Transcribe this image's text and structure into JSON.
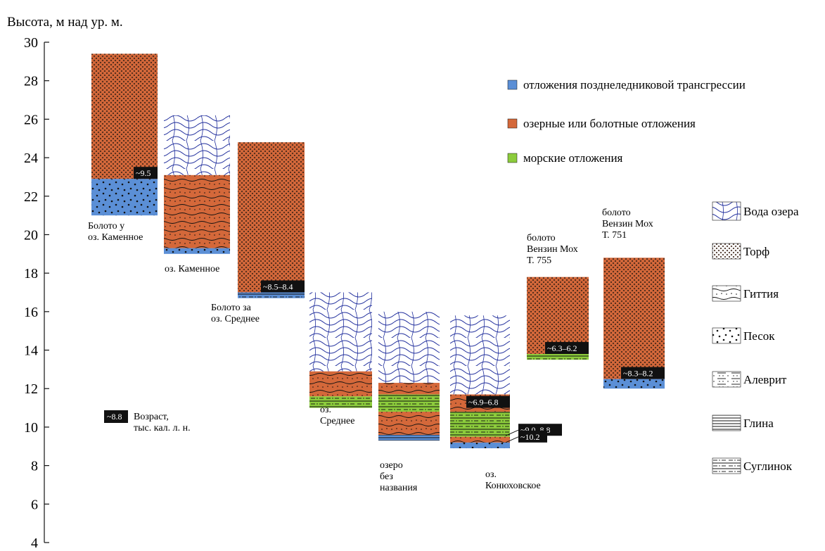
{
  "axis": {
    "ylabel": "Высота, м над ур. м.",
    "ymin": 4,
    "ymax": 30,
    "ticks": [
      "30",
      "28",
      "26",
      "24",
      "22",
      "20",
      "18",
      "16",
      "14",
      "12",
      "10",
      "8",
      "6",
      "4"
    ]
  },
  "colors": {
    "transgression": "#5b8fd6",
    "lake_bog": "#d4683a",
    "marine": "#8ccc3c",
    "water_lines": "#1f2d9c",
    "age_box": "#111111"
  },
  "legend_colors": [
    {
      "key": "transgression",
      "label": "отложения позднеледниковой трансгрессии"
    },
    {
      "key": "lake_bog",
      "label": "озерные или болотные отложения"
    },
    {
      "key": "marine",
      "label": "морские отложения"
    }
  ],
  "legend_patterns": [
    {
      "pattern": "water",
      "label": "Вода озера"
    },
    {
      "pattern": "peat",
      "label": "Торф"
    },
    {
      "pattern": "gyttja",
      "label": "Гиттия"
    },
    {
      "pattern": "sand",
      "label": "Песок"
    },
    {
      "pattern": "silt",
      "label": "Алеврит"
    },
    {
      "pattern": "clay",
      "label": "Глина"
    },
    {
      "pattern": "loam",
      "label": "Суглинок"
    }
  ],
  "age_note": {
    "sample": "~8.8",
    "line1": "Возраст,",
    "line2": "тыс. кал. л. н."
  },
  "columns": [
    {
      "name": "bolota_u_kamennoe",
      "label": [
        "Болото у",
        "оз. Каменное"
      ],
      "layers": [
        {
          "bottom": 21.0,
          "top": 22.9,
          "color": "transgression",
          "pattern": "sand"
        },
        {
          "bottom": 22.9,
          "top": 29.4,
          "color": "lake_bog",
          "pattern": "peat"
        }
      ],
      "ages": [
        {
          "text": "~9.5",
          "y": 22.9
        }
      ]
    },
    {
      "name": "oz_kamennoe",
      "label": [
        "оз. Каменное"
      ],
      "layers": [
        {
          "bottom": 19.0,
          "top": 19.3,
          "color": "transgression",
          "pattern": "sand"
        },
        {
          "bottom": 19.3,
          "top": 23.1,
          "color": "lake_bog",
          "pattern": "gyttja"
        },
        {
          "bottom": 23.1,
          "top": 26.2,
          "color": "none",
          "pattern": "water"
        }
      ],
      "ages": []
    },
    {
      "name": "boloto_za_srednee",
      "label": [
        "Болото за",
        "оз. Среднее"
      ],
      "layers": [
        {
          "bottom": 16.7,
          "top": 17.0,
          "color": "transgression",
          "pattern": "loam"
        },
        {
          "bottom": 17.0,
          "top": 24.8,
          "color": "lake_bog",
          "pattern": "peat"
        }
      ],
      "ages": [
        {
          "text": "~8.5–8.4",
          "y": 17.0
        }
      ]
    },
    {
      "name": "oz_srednee",
      "label": [
        "оз.",
        "Среднее"
      ],
      "layers": [
        {
          "bottom": 11.0,
          "top": 11.6,
          "color": "marine",
          "pattern": "loam"
        },
        {
          "bottom": 11.6,
          "top": 12.9,
          "color": "lake_bog",
          "pattern": "gyttja"
        },
        {
          "bottom": 12.9,
          "top": 17.0,
          "color": "none",
          "pattern": "water"
        }
      ],
      "ages": []
    },
    {
      "name": "ozero_bez_nazvaniya",
      "label": [
        "озеро",
        "без",
        "названия"
      ],
      "layers": [
        {
          "bottom": 9.3,
          "top": 9.6,
          "color": "transgression",
          "pattern": "clay"
        },
        {
          "bottom": 9.6,
          "top": 10.8,
          "color": "lake_bog",
          "pattern": "gyttja"
        },
        {
          "bottom": 10.8,
          "top": 11.7,
          "color": "marine",
          "pattern": "loam"
        },
        {
          "bottom": 11.7,
          "top": 12.3,
          "color": "lake_bog",
          "pattern": "gyttja"
        },
        {
          "bottom": 12.3,
          "top": 16.0,
          "color": "none",
          "pattern": "water"
        }
      ],
      "ages": []
    },
    {
      "name": "oz_konyukhovskoe",
      "label": [
        "оз.",
        "Конюховское"
      ],
      "layers": [
        {
          "bottom": 8.9,
          "top": 9.2,
          "color": "transgression",
          "pattern": "sand"
        },
        {
          "bottom": 9.2,
          "top": 9.5,
          "color": "lake_bog",
          "pattern": "gyttja"
        },
        {
          "bottom": 9.5,
          "top": 10.8,
          "color": "marine",
          "pattern": "loam"
        },
        {
          "bottom": 10.8,
          "top": 11.7,
          "color": "lake_bog",
          "pattern": "gyttja"
        },
        {
          "bottom": 11.7,
          "top": 15.8,
          "color": "none",
          "pattern": "water"
        }
      ],
      "ages": [
        {
          "text": "~6.9–6.8",
          "y": 11.0
        },
        {
          "text": "~9.0–8.8",
          "y": 9.55,
          "outside": true
        },
        {
          "text": "~10.2",
          "y": 9.2,
          "outside": true
        }
      ]
    },
    {
      "name": "boloto_venzin_755",
      "label": [
        "болото",
        "Вензин Мох",
        "Т. 755"
      ],
      "layers": [
        {
          "bottom": 13.5,
          "top": 13.8,
          "color": "marine",
          "pattern": "loam"
        },
        {
          "bottom": 13.8,
          "top": 17.8,
          "color": "lake_bog",
          "pattern": "peat"
        }
      ],
      "ages": [
        {
          "text": "~6.3–6.2",
          "y": 13.8
        }
      ]
    },
    {
      "name": "boloto_venzin_751",
      "label": [
        "болото",
        "Вензин Мох",
        "Т. 751"
      ],
      "layers": [
        {
          "bottom": 12.0,
          "top": 12.5,
          "color": "transgression",
          "pattern": "sand"
        },
        {
          "bottom": 12.5,
          "top": 18.8,
          "color": "lake_bog",
          "pattern": "peat"
        }
      ],
      "ages": [
        {
          "text": "~8.3–8.2",
          "y": 12.5
        }
      ]
    }
  ]
}
